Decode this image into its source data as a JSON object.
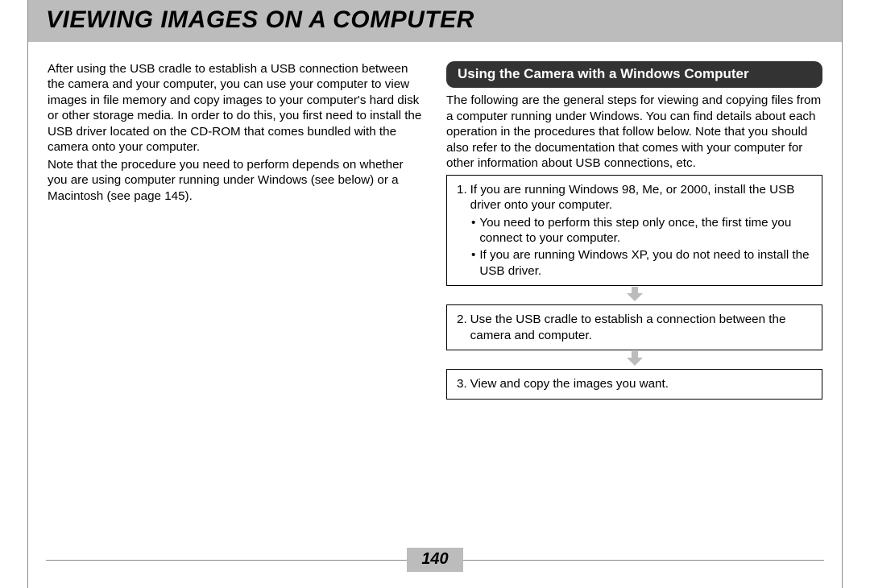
{
  "page": {
    "title": "VIEWING IMAGES ON A COMPUTER",
    "page_number": "140"
  },
  "left_column": {
    "para1": "After using the USB cradle to establish a USB connection between the camera and your computer, you can use your computer to view images in file memory and copy images to your computer's hard disk or other storage media. In order to do this, you first need to install the USB driver located on the CD-ROM that comes bundled with the camera onto your computer.",
    "para2": "Note that the procedure you need to perform depends on whether you are using computer running under Windows (see below) or a Macintosh (see page 145)."
  },
  "right_column": {
    "heading": "Using the Camera with a Windows Computer",
    "intro": "The following are the general steps for viewing and copying files from a computer running under Windows. You can find details about each operation in the procedures that follow below. Note that you should also refer to the documentation that comes with your computer for other information about USB connections, etc.",
    "steps": [
      {
        "num": "1.",
        "text": "If you are running Windows 98, Me, or 2000, install the USB driver onto your computer.",
        "bullets": [
          "You need to perform this step only once, the first time you connect to your computer.",
          "If you are running Windows XP, you do not need to install the USB driver."
        ]
      },
      {
        "num": "2.",
        "text": "Use the USB cradle to establish a connection between the camera and computer.",
        "bullets": []
      },
      {
        "num": "3.",
        "text": "View and copy the images you want.",
        "bullets": []
      }
    ]
  },
  "style": {
    "title_bg": "#bcbcbc",
    "heading_bg": "#333333",
    "heading_fg": "#ffffff",
    "arrow_color": "#bcbcbc",
    "rule_color": "#8a8a8a"
  }
}
